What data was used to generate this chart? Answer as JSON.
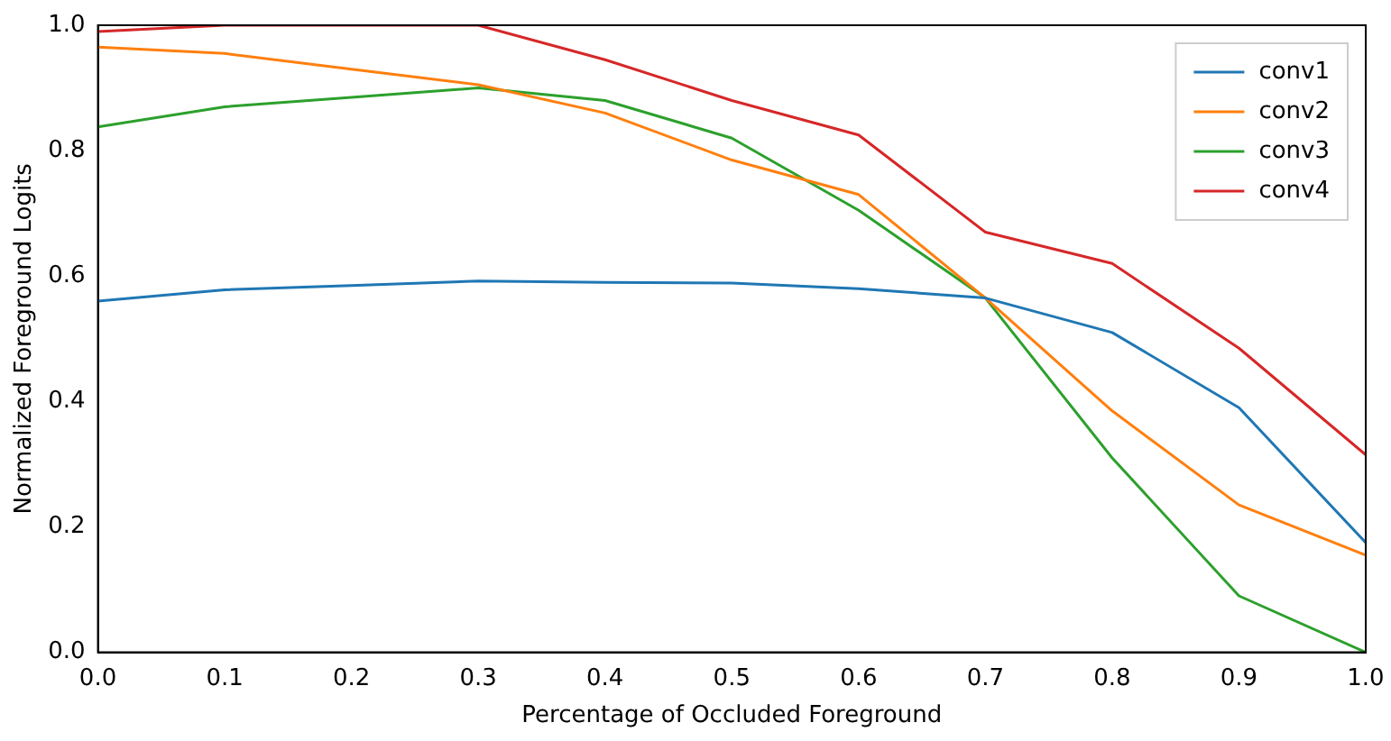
{
  "chart_data": {
    "type": "line",
    "xlabel": "Percentage of Occluded Foreground",
    "ylabel": "Normalized Foreground Logits",
    "x": [
      0.0,
      0.1,
      0.2,
      0.3,
      0.4,
      0.5,
      0.6,
      0.7,
      0.8,
      0.9,
      1.0
    ],
    "series": [
      {
        "name": "conv1",
        "color": "#1f77b4",
        "values": [
          0.56,
          0.578,
          0.585,
          0.592,
          0.59,
          0.589,
          0.58,
          0.565,
          0.51,
          0.39,
          0.175
        ]
      },
      {
        "name": "conv2",
        "color": "#ff7f0e",
        "values": [
          0.965,
          0.955,
          0.93,
          0.905,
          0.86,
          0.785,
          0.73,
          0.565,
          0.385,
          0.235,
          0.155
        ]
      },
      {
        "name": "conv3",
        "color": "#2ca02c",
        "values": [
          0.838,
          0.87,
          0.885,
          0.9,
          0.88,
          0.82,
          0.705,
          0.565,
          0.31,
          0.09,
          0.0
        ]
      },
      {
        "name": "conv4",
        "color": "#d62728",
        "values": [
          0.99,
          1.0,
          1.0,
          1.0,
          0.945,
          0.88,
          0.825,
          0.67,
          0.62,
          0.485,
          0.315
        ]
      }
    ],
    "xlim": [
      0,
      1
    ],
    "ylim": [
      0,
      1
    ],
    "xticks": [
      {
        "value": 0,
        "label": "0.0"
      },
      {
        "value": 0.1,
        "label": "0.1"
      },
      {
        "value": 0.2,
        "label": "0.2"
      },
      {
        "value": 0.3,
        "label": "0.3"
      },
      {
        "value": 0.4,
        "label": "0.4"
      },
      {
        "value": 0.5,
        "label": "0.5"
      },
      {
        "value": 0.6,
        "label": "0.6"
      },
      {
        "value": 0.7,
        "label": "0.7"
      },
      {
        "value": 0.8,
        "label": "0.8"
      },
      {
        "value": 0.9,
        "label": "0.9"
      },
      {
        "value": 1,
        "label": "1.0"
      }
    ],
    "yticks": [
      {
        "value": 0,
        "label": "0.0"
      },
      {
        "value": 0.2,
        "label": "0.2"
      },
      {
        "value": 0.4,
        "label": "0.4"
      },
      {
        "value": 0.6,
        "label": "0.6"
      },
      {
        "value": 0.8,
        "label": "0.8"
      },
      {
        "value": 1,
        "label": "1.0"
      }
    ],
    "grid": false,
    "legend": "top right",
    "marker": "none",
    "line_style": "solid"
  }
}
